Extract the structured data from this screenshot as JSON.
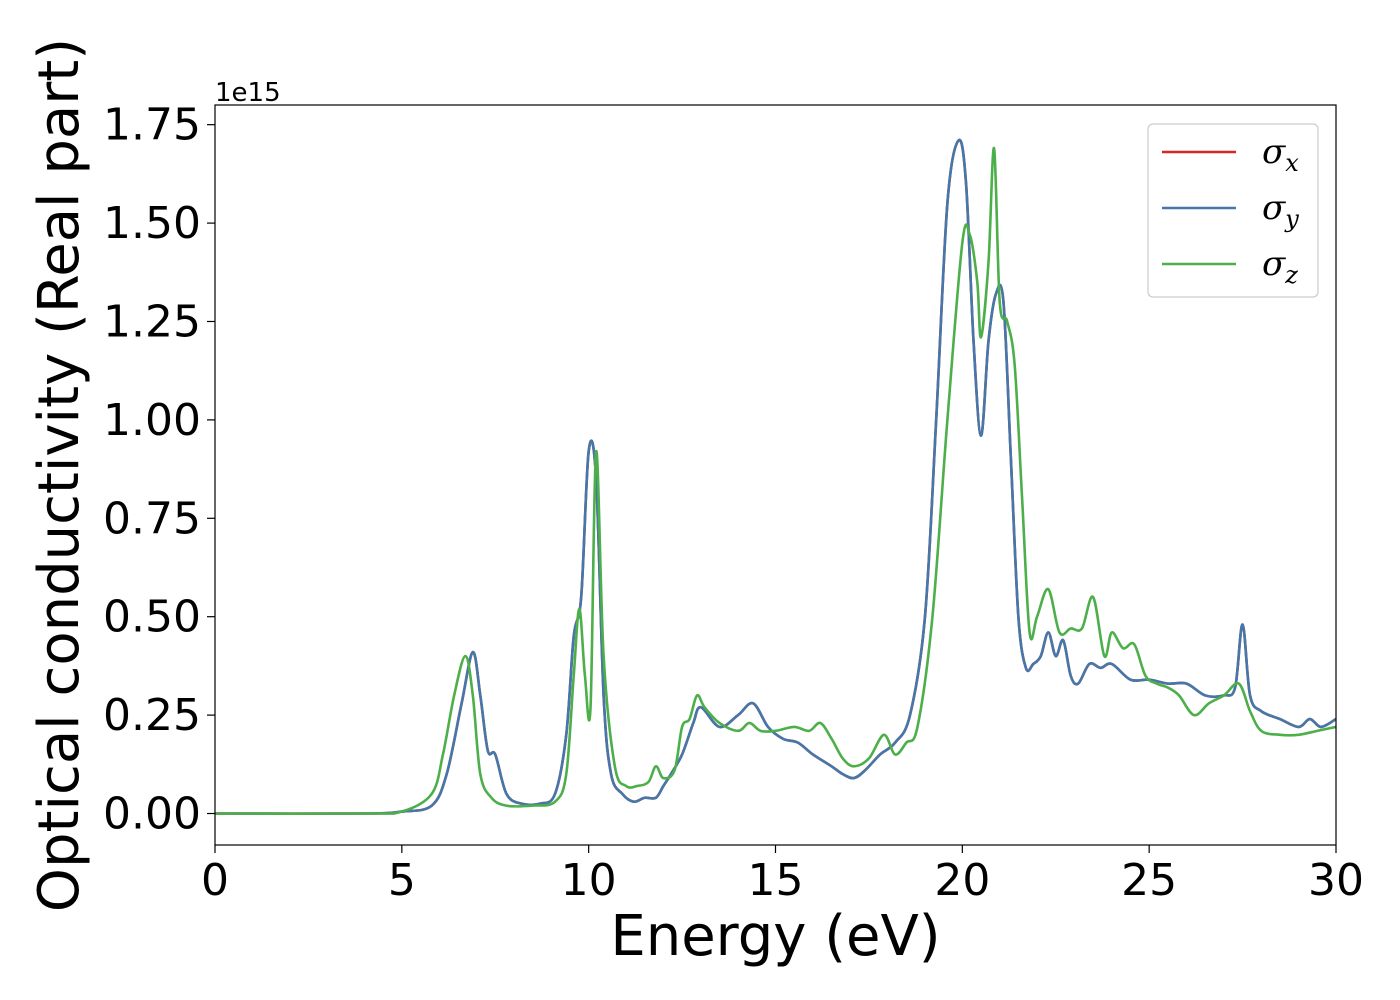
{
  "chart_data": {
    "type": "line",
    "title": "",
    "xlabel": "Energy (eV)",
    "ylabel": "Optical conductivity (Real part)",
    "y_offset_label": "1e15",
    "y_scale": 1000000000000000.0,
    "xlim": [
      0,
      30
    ],
    "ylim": [
      -0.08,
      1.8
    ],
    "x_ticks": [
      0,
      5,
      10,
      15,
      20,
      25,
      30
    ],
    "x_tick_labels": [
      "0",
      "5",
      "10",
      "15",
      "20",
      "25",
      "30"
    ],
    "y_ticks": [
      0.0,
      0.25,
      0.5,
      0.75,
      1.0,
      1.25,
      1.5,
      1.75
    ],
    "y_tick_labels": [
      "0.00",
      "0.25",
      "0.50",
      "0.75",
      "1.00",
      "1.25",
      "1.50",
      "1.75"
    ],
    "grid": false,
    "legend_position": "top-right",
    "series": [
      {
        "name": "σ",
        "subscript": "x",
        "color": "#d62728",
        "x": [
          0,
          4,
          5,
          5.8,
          6.2,
          6.6,
          6.9,
          7.1,
          7.3,
          7.5,
          7.8,
          8.2,
          8.7,
          9.1,
          9.4,
          9.6,
          9.8,
          10.0,
          10.2,
          10.4,
          10.6,
          10.9,
          11.2,
          11.5,
          11.8,
          12.0,
          12.2,
          12.5,
          12.8,
          13.0,
          13.5,
          14.0,
          14.4,
          14.8,
          15.2,
          15.6,
          16.0,
          16.5,
          16.8,
          17.1,
          17.4,
          17.8,
          18.2,
          18.6,
          19.0,
          19.3,
          19.6,
          19.9,
          20.1,
          20.3,
          20.5,
          20.7,
          20.9,
          21.1,
          21.3,
          21.5,
          21.7,
          21.9,
          22.1,
          22.3,
          22.5,
          22.7,
          22.9,
          23.1,
          23.4,
          23.7,
          24.0,
          24.5,
          25.0,
          25.5,
          26.0,
          26.5,
          27.0,
          27.3,
          27.5,
          27.7,
          28.0,
          28.5,
          29.0,
          29.3,
          29.6,
          30.0
        ],
        "values": [
          0.0,
          0.0,
          0.005,
          0.02,
          0.1,
          0.28,
          0.41,
          0.3,
          0.16,
          0.15,
          0.05,
          0.025,
          0.025,
          0.05,
          0.2,
          0.45,
          0.55,
          0.92,
          0.85,
          0.3,
          0.1,
          0.05,
          0.03,
          0.04,
          0.04,
          0.07,
          0.1,
          0.15,
          0.23,
          0.27,
          0.22,
          0.25,
          0.28,
          0.22,
          0.19,
          0.18,
          0.15,
          0.12,
          0.1,
          0.09,
          0.11,
          0.15,
          0.18,
          0.25,
          0.5,
          1.0,
          1.55,
          1.71,
          1.6,
          1.2,
          0.96,
          1.2,
          1.32,
          1.3,
          0.9,
          0.5,
          0.37,
          0.38,
          0.4,
          0.46,
          0.4,
          0.44,
          0.35,
          0.33,
          0.38,
          0.37,
          0.38,
          0.34,
          0.34,
          0.33,
          0.33,
          0.3,
          0.3,
          0.32,
          0.48,
          0.3,
          0.26,
          0.24,
          0.22,
          0.24,
          0.22,
          0.24
        ]
      },
      {
        "name": "σ",
        "subscript": "y",
        "color": "#4477aa",
        "x": [
          0,
          4,
          5,
          5.8,
          6.2,
          6.6,
          6.9,
          7.1,
          7.3,
          7.5,
          7.8,
          8.2,
          8.7,
          9.1,
          9.4,
          9.6,
          9.8,
          10.0,
          10.2,
          10.4,
          10.6,
          10.9,
          11.2,
          11.5,
          11.8,
          12.0,
          12.2,
          12.5,
          12.8,
          13.0,
          13.5,
          14.0,
          14.4,
          14.8,
          15.2,
          15.6,
          16.0,
          16.5,
          16.8,
          17.1,
          17.4,
          17.8,
          18.2,
          18.6,
          19.0,
          19.3,
          19.6,
          19.9,
          20.1,
          20.3,
          20.5,
          20.7,
          20.9,
          21.1,
          21.3,
          21.5,
          21.7,
          21.9,
          22.1,
          22.3,
          22.5,
          22.7,
          22.9,
          23.1,
          23.4,
          23.7,
          24.0,
          24.5,
          25.0,
          25.5,
          26.0,
          26.5,
          27.0,
          27.3,
          27.5,
          27.7,
          28.0,
          28.5,
          29.0,
          29.3,
          29.6,
          30.0
        ],
        "values": [
          0.0,
          0.0,
          0.005,
          0.02,
          0.1,
          0.28,
          0.41,
          0.3,
          0.16,
          0.15,
          0.05,
          0.025,
          0.025,
          0.05,
          0.2,
          0.45,
          0.55,
          0.92,
          0.85,
          0.3,
          0.1,
          0.05,
          0.03,
          0.04,
          0.04,
          0.07,
          0.1,
          0.15,
          0.23,
          0.27,
          0.22,
          0.25,
          0.28,
          0.22,
          0.19,
          0.18,
          0.15,
          0.12,
          0.1,
          0.09,
          0.11,
          0.15,
          0.18,
          0.25,
          0.5,
          1.0,
          1.55,
          1.71,
          1.6,
          1.2,
          0.96,
          1.2,
          1.32,
          1.3,
          0.9,
          0.5,
          0.37,
          0.38,
          0.4,
          0.46,
          0.4,
          0.44,
          0.35,
          0.33,
          0.38,
          0.37,
          0.38,
          0.34,
          0.34,
          0.33,
          0.33,
          0.3,
          0.3,
          0.32,
          0.48,
          0.3,
          0.26,
          0.24,
          0.22,
          0.24,
          0.22,
          0.24
        ]
      },
      {
        "name": "σ",
        "subscript": "z",
        "color": "#4daf4a",
        "x": [
          0,
          4,
          5,
          5.8,
          6.1,
          6.4,
          6.7,
          6.9,
          7.1,
          7.4,
          7.8,
          8.5,
          9.1,
          9.4,
          9.6,
          9.75,
          9.9,
          10.05,
          10.2,
          10.4,
          10.7,
          11.0,
          11.3,
          11.6,
          11.8,
          12.0,
          12.3,
          12.5,
          12.7,
          12.9,
          13.1,
          13.5,
          14.0,
          14.3,
          14.6,
          15.0,
          15.5,
          15.9,
          16.2,
          16.5,
          16.8,
          17.1,
          17.5,
          17.9,
          18.2,
          18.5,
          18.8,
          19.2,
          19.6,
          20.0,
          20.2,
          20.4,
          20.5,
          20.7,
          20.85,
          21.0,
          21.2,
          21.4,
          21.6,
          21.8,
          22.0,
          22.3,
          22.6,
          22.9,
          23.2,
          23.5,
          23.8,
          24.0,
          24.3,
          24.6,
          24.9,
          25.2,
          25.5,
          25.8,
          26.2,
          26.6,
          27.0,
          27.4,
          27.7,
          28.0,
          28.5,
          29.0,
          29.5,
          30.0
        ],
        "values": [
          0.0,
          0.0,
          0.005,
          0.05,
          0.15,
          0.3,
          0.4,
          0.3,
          0.1,
          0.04,
          0.02,
          0.02,
          0.03,
          0.1,
          0.35,
          0.52,
          0.35,
          0.27,
          0.92,
          0.4,
          0.12,
          0.07,
          0.07,
          0.08,
          0.12,
          0.09,
          0.11,
          0.22,
          0.24,
          0.3,
          0.27,
          0.23,
          0.21,
          0.23,
          0.21,
          0.21,
          0.22,
          0.21,
          0.23,
          0.19,
          0.14,
          0.12,
          0.14,
          0.2,
          0.15,
          0.18,
          0.22,
          0.5,
          1.0,
          1.45,
          1.47,
          1.35,
          1.21,
          1.4,
          1.69,
          1.3,
          1.25,
          1.14,
          0.8,
          0.46,
          0.5,
          0.57,
          0.46,
          0.47,
          0.47,
          0.55,
          0.4,
          0.46,
          0.42,
          0.43,
          0.35,
          0.33,
          0.32,
          0.3,
          0.25,
          0.28,
          0.3,
          0.33,
          0.26,
          0.21,
          0.2,
          0.2,
          0.21,
          0.22
        ]
      }
    ]
  }
}
